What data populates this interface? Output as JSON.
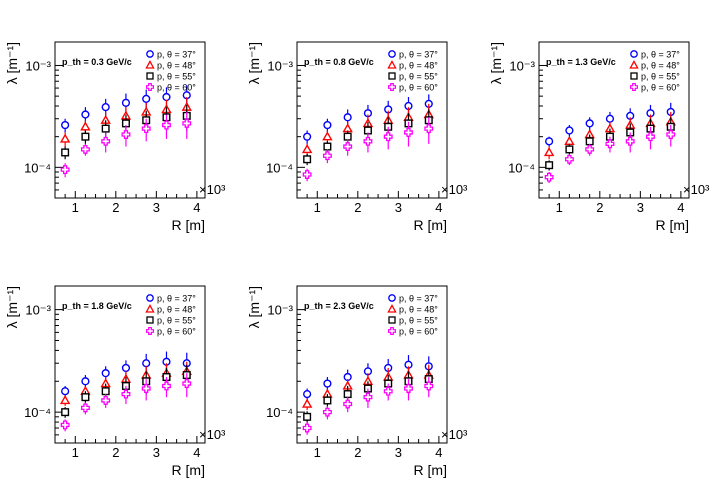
{
  "figure": {
    "shared": {
      "ylabel": "λ [m⁻¹]",
      "xlabel": "R [m]",
      "x_multiplier": "×10³",
      "x_unit": "m",
      "ytick_labels": [
        "10⁻⁴",
        "10⁻³"
      ],
      "xtick_labels": [
        "1",
        "2",
        "3",
        "4"
      ]
    },
    "legend_labels": [
      "p, θ = 37°",
      "p, θ = 48°",
      "p, θ = 55°",
      "p, θ = 60°"
    ]
  },
  "chart_data": [
    {
      "type": "scatter",
      "title": "p_th = 0.3 GeV/c",
      "xlabel": "R [m]",
      "ylabel": "λ [m⁻¹]",
      "x_scale": "linear",
      "y_scale": "log",
      "xlim": [
        500,
        4200
      ],
      "ylim": [
        5e-05,
        0.0017
      ],
      "x": [
        750,
        1250,
        1750,
        2250,
        2750,
        3250,
        3750
      ],
      "series": [
        {
          "name": "p, θ = 37°",
          "marker": "circle",
          "color": "#0000ff",
          "values": [
            0.00026,
            0.00033,
            0.00039,
            0.00043,
            0.00047,
            0.00049,
            0.00051
          ],
          "errors": [
            4e-05,
            6e-05,
            8e-05,
            0.0001,
            0.00011,
            0.00012,
            0.00013
          ]
        },
        {
          "name": "p, θ = 48°",
          "marker": "triangle",
          "color": "#ff0000",
          "values": [
            0.00019,
            0.00025,
            0.00029,
            0.00032,
            0.00035,
            0.00037,
            0.00039
          ],
          "errors": [
            3e-05,
            4e-05,
            6e-05,
            7e-05,
            8e-05,
            9e-05,
            0.0001
          ]
        },
        {
          "name": "p, θ = 55°",
          "marker": "square",
          "color": "#000000",
          "values": [
            0.00014,
            0.0002,
            0.00024,
            0.00027,
            0.00029,
            0.00031,
            0.00032
          ],
          "errors": [
            2e-05,
            3e-05,
            5e-05,
            6e-05,
            7e-05,
            8e-05,
            9e-05
          ]
        },
        {
          "name": "p, θ = 60°",
          "marker": "cross",
          "color": "#ff00ff",
          "values": [
            9.5e-05,
            0.00015,
            0.00018,
            0.00021,
            0.00024,
            0.00026,
            0.00027
          ],
          "errors": [
            1.5e-05,
            2e-05,
            4e-05,
            5e-05,
            6e-05,
            7e-05,
            8e-05
          ]
        }
      ]
    },
    {
      "type": "scatter",
      "title": "p_th = 0.8 GeV/c",
      "xlabel": "R [m]",
      "ylabel": "λ [m⁻¹]",
      "x_scale": "linear",
      "y_scale": "log",
      "xlim": [
        500,
        4200
      ],
      "ylim": [
        5e-05,
        0.0017
      ],
      "x": [
        750,
        1250,
        1750,
        2250,
        2750,
        3250,
        3750
      ],
      "series": [
        {
          "name": "p, θ = 37°",
          "marker": "circle",
          "color": "#0000ff",
          "values": [
            0.0002,
            0.00026,
            0.00031,
            0.00034,
            0.00037,
            0.0004,
            0.00042
          ],
          "errors": [
            3e-05,
            4e-05,
            6e-05,
            7e-05,
            8e-05,
            9e-05,
            0.0001
          ]
        },
        {
          "name": "p, θ = 48°",
          "marker": "triangle",
          "color": "#ff0000",
          "values": [
            0.00015,
            0.0002,
            0.00024,
            0.00027,
            0.00029,
            0.00031,
            0.00033
          ],
          "errors": [
            2e-05,
            3e-05,
            4e-05,
            6e-05,
            7e-05,
            8e-05,
            9e-05
          ]
        },
        {
          "name": "p, θ = 55°",
          "marker": "square",
          "color": "#000000",
          "values": [
            0.00012,
            0.00016,
            0.0002,
            0.00023,
            0.00025,
            0.00027,
            0.00029
          ],
          "errors": [
            1.5e-05,
            2e-05,
            3e-05,
            5e-05,
            6e-05,
            7e-05,
            8e-05
          ]
        },
        {
          "name": "p, θ = 60°",
          "marker": "cross",
          "color": "#ff00ff",
          "values": [
            8.5e-05,
            0.00013,
            0.00016,
            0.00018,
            0.0002,
            0.00022,
            0.00024
          ],
          "errors": [
            1.2e-05,
            2e-05,
            3e-05,
            4e-05,
            5e-05,
            6e-05,
            7e-05
          ]
        }
      ]
    },
    {
      "type": "scatter",
      "title": "p_th = 1.3 GeV/c",
      "xlabel": "R [m]",
      "ylabel": "λ [m⁻¹]",
      "x_scale": "linear",
      "y_scale": "log",
      "xlim": [
        500,
        4200
      ],
      "ylim": [
        5e-05,
        0.0017
      ],
      "x": [
        750,
        1250,
        1750,
        2250,
        2750,
        3250,
        3750
      ],
      "series": [
        {
          "name": "p, θ = 37°",
          "marker": "circle",
          "color": "#0000ff",
          "values": [
            0.00018,
            0.00023,
            0.00027,
            0.0003,
            0.00032,
            0.00034,
            0.00035
          ],
          "errors": [
            2e-05,
            3e-05,
            4e-05,
            5e-05,
            6e-05,
            7e-05,
            8e-05
          ]
        },
        {
          "name": "p, θ = 48°",
          "marker": "triangle",
          "color": "#ff0000",
          "values": [
            0.00014,
            0.00018,
            0.00021,
            0.00024,
            0.00026,
            0.00027,
            0.00028
          ],
          "errors": [
            2e-05,
            2e-05,
            3e-05,
            4e-05,
            5e-05,
            6e-05,
            7e-05
          ]
        },
        {
          "name": "p, θ = 55°",
          "marker": "square",
          "color": "#000000",
          "values": [
            0.000105,
            0.00015,
            0.00018,
            0.0002,
            0.00022,
            0.00024,
            0.00025
          ],
          "errors": [
            1.2e-05,
            2e-05,
            3e-05,
            4e-05,
            5e-05,
            6e-05,
            6e-05
          ]
        },
        {
          "name": "p, θ = 60°",
          "marker": "cross",
          "color": "#ff00ff",
          "values": [
            8e-05,
            0.00012,
            0.00015,
            0.00017,
            0.00018,
            0.0002,
            0.00021
          ],
          "errors": [
            1e-05,
            1.5e-05,
            2e-05,
            3e-05,
            4e-05,
            5e-05,
            5e-05
          ]
        }
      ]
    },
    {
      "type": "scatter",
      "title": "p_th = 1.8 GeV/c",
      "xlabel": "R [m]",
      "ylabel": "λ [m⁻¹]",
      "x_scale": "linear",
      "y_scale": "log",
      "xlim": [
        500,
        4200
      ],
      "ylim": [
        5e-05,
        0.0017
      ],
      "x": [
        750,
        1250,
        1750,
        2250,
        2750,
        3250,
        3750
      ],
      "series": [
        {
          "name": "p, θ = 37°",
          "marker": "circle",
          "color": "#0000ff",
          "values": [
            0.00016,
            0.0002,
            0.00024,
            0.00027,
            0.0003,
            0.00031,
            0.0003
          ],
          "errors": [
            2e-05,
            3e-05,
            4e-05,
            5e-05,
            7e-05,
            8e-05,
            8e-05
          ]
        },
        {
          "name": "p, θ = 48°",
          "marker": "triangle",
          "color": "#ff0000",
          "values": [
            0.00013,
            0.00016,
            0.00019,
            0.00021,
            0.00023,
            0.00024,
            0.00025
          ],
          "errors": [
            1.5e-05,
            2e-05,
            3e-05,
            4e-05,
            5e-05,
            6e-05,
            6e-05
          ]
        },
        {
          "name": "p, θ = 55°",
          "marker": "square",
          "color": "#000000",
          "values": [
            0.0001,
            0.00014,
            0.00016,
            0.00018,
            0.0002,
            0.00022,
            0.00023
          ],
          "errors": [
            1.2e-05,
            2e-05,
            3e-05,
            4e-05,
            5e-05,
            5e-05,
            6e-05
          ]
        },
        {
          "name": "p, θ = 60°",
          "marker": "cross",
          "color": "#ff00ff",
          "values": [
            7.5e-05,
            0.00011,
            0.00013,
            0.00015,
            0.00017,
            0.00018,
            0.00019
          ],
          "errors": [
            1e-05,
            1.5e-05,
            2e-05,
            3e-05,
            4e-05,
            4e-05,
            5e-05
          ]
        }
      ]
    },
    {
      "type": "scatter",
      "title": "p_th = 2.3 GeV/c",
      "xlabel": "R [m]",
      "ylabel": "λ [m⁻¹]",
      "x_scale": "linear",
      "y_scale": "log",
      "xlim": [
        500,
        4200
      ],
      "ylim": [
        5e-05,
        0.0017
      ],
      "x": [
        750,
        1250,
        1750,
        2250,
        2750,
        3250,
        3750
      ],
      "series": [
        {
          "name": "p, θ = 37°",
          "marker": "circle",
          "color": "#0000ff",
          "values": [
            0.00015,
            0.00019,
            0.00022,
            0.00025,
            0.00027,
            0.00029,
            0.00028
          ],
          "errors": [
            2e-05,
            3e-05,
            4e-05,
            5e-05,
            6e-05,
            7e-05,
            7e-05
          ]
        },
        {
          "name": "p, θ = 48°",
          "marker": "triangle",
          "color": "#ff0000",
          "values": [
            0.00012,
            0.00015,
            0.00018,
            0.0002,
            0.00022,
            0.00023,
            0.00023
          ],
          "errors": [
            1.5e-05,
            2e-05,
            3e-05,
            4e-05,
            5e-05,
            5e-05,
            6e-05
          ]
        },
        {
          "name": "p, θ = 55°",
          "marker": "square",
          "color": "#000000",
          "values": [
            9e-05,
            0.00013,
            0.00015,
            0.00017,
            0.00019,
            0.0002,
            0.00021
          ],
          "errors": [
            1.2e-05,
            2e-05,
            3e-05,
            3e-05,
            4e-05,
            5e-05,
            5e-05
          ]
        },
        {
          "name": "p, θ = 60°",
          "marker": "cross",
          "color": "#ff00ff",
          "values": [
            7e-05,
            0.0001,
            0.00012,
            0.00014,
            0.00016,
            0.00017,
            0.00018
          ],
          "errors": [
            1e-05,
            1.5e-05,
            2e-05,
            3e-05,
            3e-05,
            4e-05,
            4e-05
          ]
        }
      ]
    }
  ]
}
